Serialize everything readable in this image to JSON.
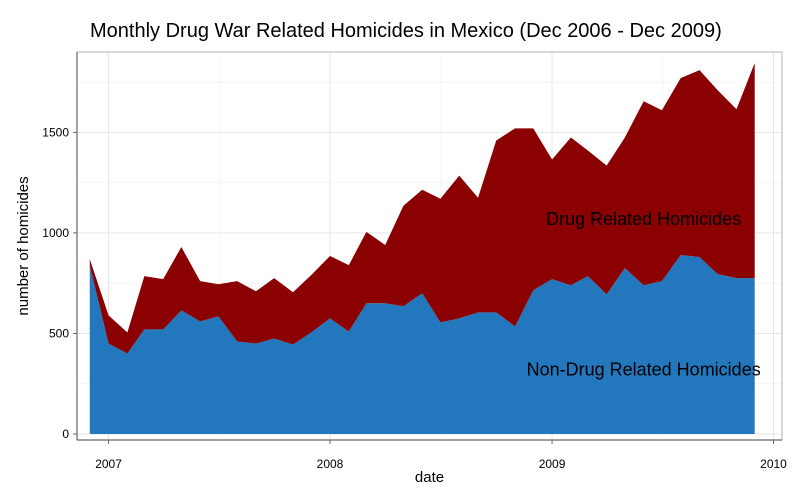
{
  "chart_data": {
    "type": "area",
    "stacked": true,
    "title": "Monthly Drug War Related Homicides in Mexico (Dec 2006 - Dec 2009)",
    "xlabel": "date",
    "ylabel": "number of homicides",
    "xlim": [
      "2006-11-10",
      "2010-01-15"
    ],
    "ylim": [
      -30,
      1900
    ],
    "grid": true,
    "x_ticks": [
      {
        "date": "2007-01-01",
        "label": "2007"
      },
      {
        "date": "2008-01-01",
        "label": "2008"
      },
      {
        "date": "2009-01-01",
        "label": "2009"
      },
      {
        "date": "2010-01-01",
        "label": "2010"
      }
    ],
    "y_ticks": [
      0,
      500,
      1000,
      1500
    ],
    "x": [
      "2006-12-01",
      "2007-01-01",
      "2007-02-01",
      "2007-03-01",
      "2007-04-01",
      "2007-05-01",
      "2007-06-01",
      "2007-07-01",
      "2007-08-01",
      "2007-09-01",
      "2007-10-01",
      "2007-11-01",
      "2007-12-01",
      "2008-01-01",
      "2008-02-01",
      "2008-03-01",
      "2008-04-01",
      "2008-05-01",
      "2008-06-01",
      "2008-07-01",
      "2008-08-01",
      "2008-09-01",
      "2008-10-01",
      "2008-11-01",
      "2008-12-01",
      "2009-01-01",
      "2009-02-01",
      "2009-03-01",
      "2009-04-01",
      "2009-05-01",
      "2009-06-01",
      "2009-07-01",
      "2009-08-01",
      "2009-09-01",
      "2009-10-01",
      "2009-11-01",
      "2009-12-01"
    ],
    "series": [
      {
        "name": "Non-Drug Related Homicides",
        "color": "#2377bd",
        "values": [
          840,
          450,
          400,
          520,
          520,
          615,
          560,
          585,
          460,
          450,
          475,
          445,
          505,
          575,
          510,
          650,
          650,
          635,
          700,
          555,
          575,
          605,
          605,
          535,
          715,
          770,
          740,
          785,
          695,
          825,
          740,
          760,
          890,
          880,
          795,
          775,
          775
        ]
      },
      {
        "name": "Drug Related Homicides",
        "color": "#8b0000",
        "values": [
          30,
          140,
          105,
          265,
          250,
          315,
          200,
          160,
          300,
          260,
          300,
          260,
          285,
          310,
          330,
          355,
          290,
          500,
          515,
          615,
          710,
          570,
          855,
          985,
          805,
          595,
          735,
          625,
          640,
          650,
          915,
          850,
          880,
          930,
          915,
          840,
          1070
        ]
      }
    ],
    "annotations": [
      {
        "text": "Drug Related Homicides",
        "x": "2009-06-01",
        "y": 1040
      },
      {
        "text": "Non-Drug Related Homicides",
        "x": "2009-06-01",
        "y": 290
      }
    ]
  }
}
